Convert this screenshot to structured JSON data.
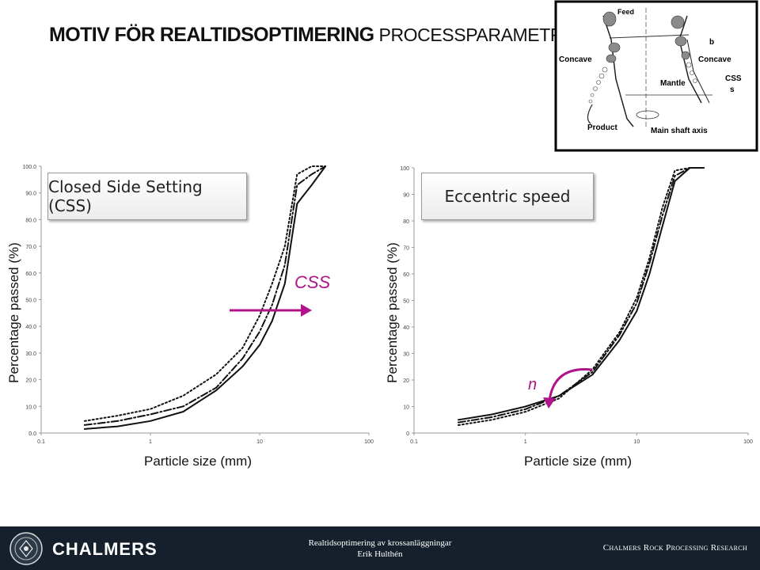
{
  "slide": {
    "title_bold": "MOTIV FÖR REALTIDSOPTIMERING",
    "title_light": "PROCESSPARAMETRAR"
  },
  "diagram": {
    "labels": {
      "feed": "Feed",
      "concave_left": "Concave",
      "concave_right": "Concave",
      "b": "b",
      "mantle": "Mantle",
      "css": "CSS",
      "s": "s",
      "product": "Product",
      "axis": "Main shaft axis"
    }
  },
  "chart_data": [
    {
      "type": "line",
      "title": "Closed Side Setting (CSS)",
      "xlabel": "Particle size (mm)",
      "ylabel": "Percentage passed (%)",
      "xscale": "log",
      "xlim": [
        0.1,
        100
      ],
      "ylim": [
        0,
        100
      ],
      "xticks": [
        "0.1",
        "1",
        "10",
        "100"
      ],
      "yticks": [
        "0.0",
        "10.0",
        "20.0",
        "30.0",
        "40.0",
        "50.0",
        "60.0",
        "70.0",
        "80.0",
        "90.0",
        "100.0"
      ],
      "grid": false,
      "series": [
        {
          "style": "solid",
          "x": [
            0.25,
            0.5,
            1,
            2,
            4,
            7,
            10,
            13,
            17,
            22,
            30,
            40
          ],
          "y": [
            1.5,
            2.5,
            4.5,
            8,
            16,
            25,
            33,
            42,
            56,
            86,
            93,
            100
          ]
        },
        {
          "style": "dashdot",
          "x": [
            0.25,
            0.5,
            1,
            2,
            4,
            7,
            10,
            13,
            17,
            22,
            30,
            40
          ],
          "y": [
            3,
            4.5,
            7,
            10,
            17,
            28,
            38,
            48,
            63,
            93,
            97,
            100
          ]
        },
        {
          "style": "dotted",
          "x": [
            0.25,
            0.5,
            1,
            2,
            4,
            7,
            10,
            13,
            17,
            22,
            30,
            40
          ],
          "y": [
            4.5,
            6.5,
            9,
            14,
            22,
            32,
            44,
            56,
            70,
            97,
            100,
            100
          ]
        }
      ],
      "annotation": {
        "text": "CSS",
        "arrow_direction": "right",
        "color": "#b0138a"
      }
    },
    {
      "type": "line",
      "title": "Eccentric speed",
      "xlabel": "Particle size (mm)",
      "ylabel": "Percentage passed (%)",
      "xscale": "log",
      "xlim": [
        0.1,
        100
      ],
      "ylim": [
        0,
        100
      ],
      "xticks": [
        "0.1",
        "1",
        "10",
        "100"
      ],
      "yticks": [
        "0",
        "10",
        "20",
        "30",
        "40",
        "50",
        "60",
        "70",
        "80",
        "90",
        "100"
      ],
      "grid": false,
      "series": [
        {
          "style": "solid",
          "x": [
            0.25,
            0.5,
            1,
            2,
            4,
            7,
            10,
            13,
            17,
            22,
            30,
            40
          ],
          "y": [
            5,
            7,
            10,
            14,
            22,
            35,
            46,
            60,
            78,
            95,
            100,
            100
          ]
        },
        {
          "style": "dashdot",
          "x": [
            0.25,
            0.5,
            1,
            2,
            4,
            7,
            10,
            13,
            17,
            22,
            30,
            40
          ],
          "y": [
            4,
            6,
            9,
            14,
            23,
            37,
            49,
            64,
            82,
            97,
            100,
            100
          ]
        },
        {
          "style": "dotted",
          "x": [
            0.25,
            0.5,
            1,
            2,
            4,
            7,
            10,
            13,
            17,
            22,
            30,
            40
          ],
          "y": [
            3,
            5,
            8,
            13,
            24,
            38,
            51,
            66,
            85,
            99,
            100,
            100
          ]
        }
      ],
      "annotation": {
        "text": "n",
        "arrow_direction": "down-left",
        "color": "#b0138a"
      }
    }
  ],
  "footer": {
    "brand": "CHALMERS",
    "line1": "Realtidsoptimering av krossanläggningar",
    "line2": "Erik Hulthén",
    "right": "Chalmers Rock Processing Research"
  }
}
